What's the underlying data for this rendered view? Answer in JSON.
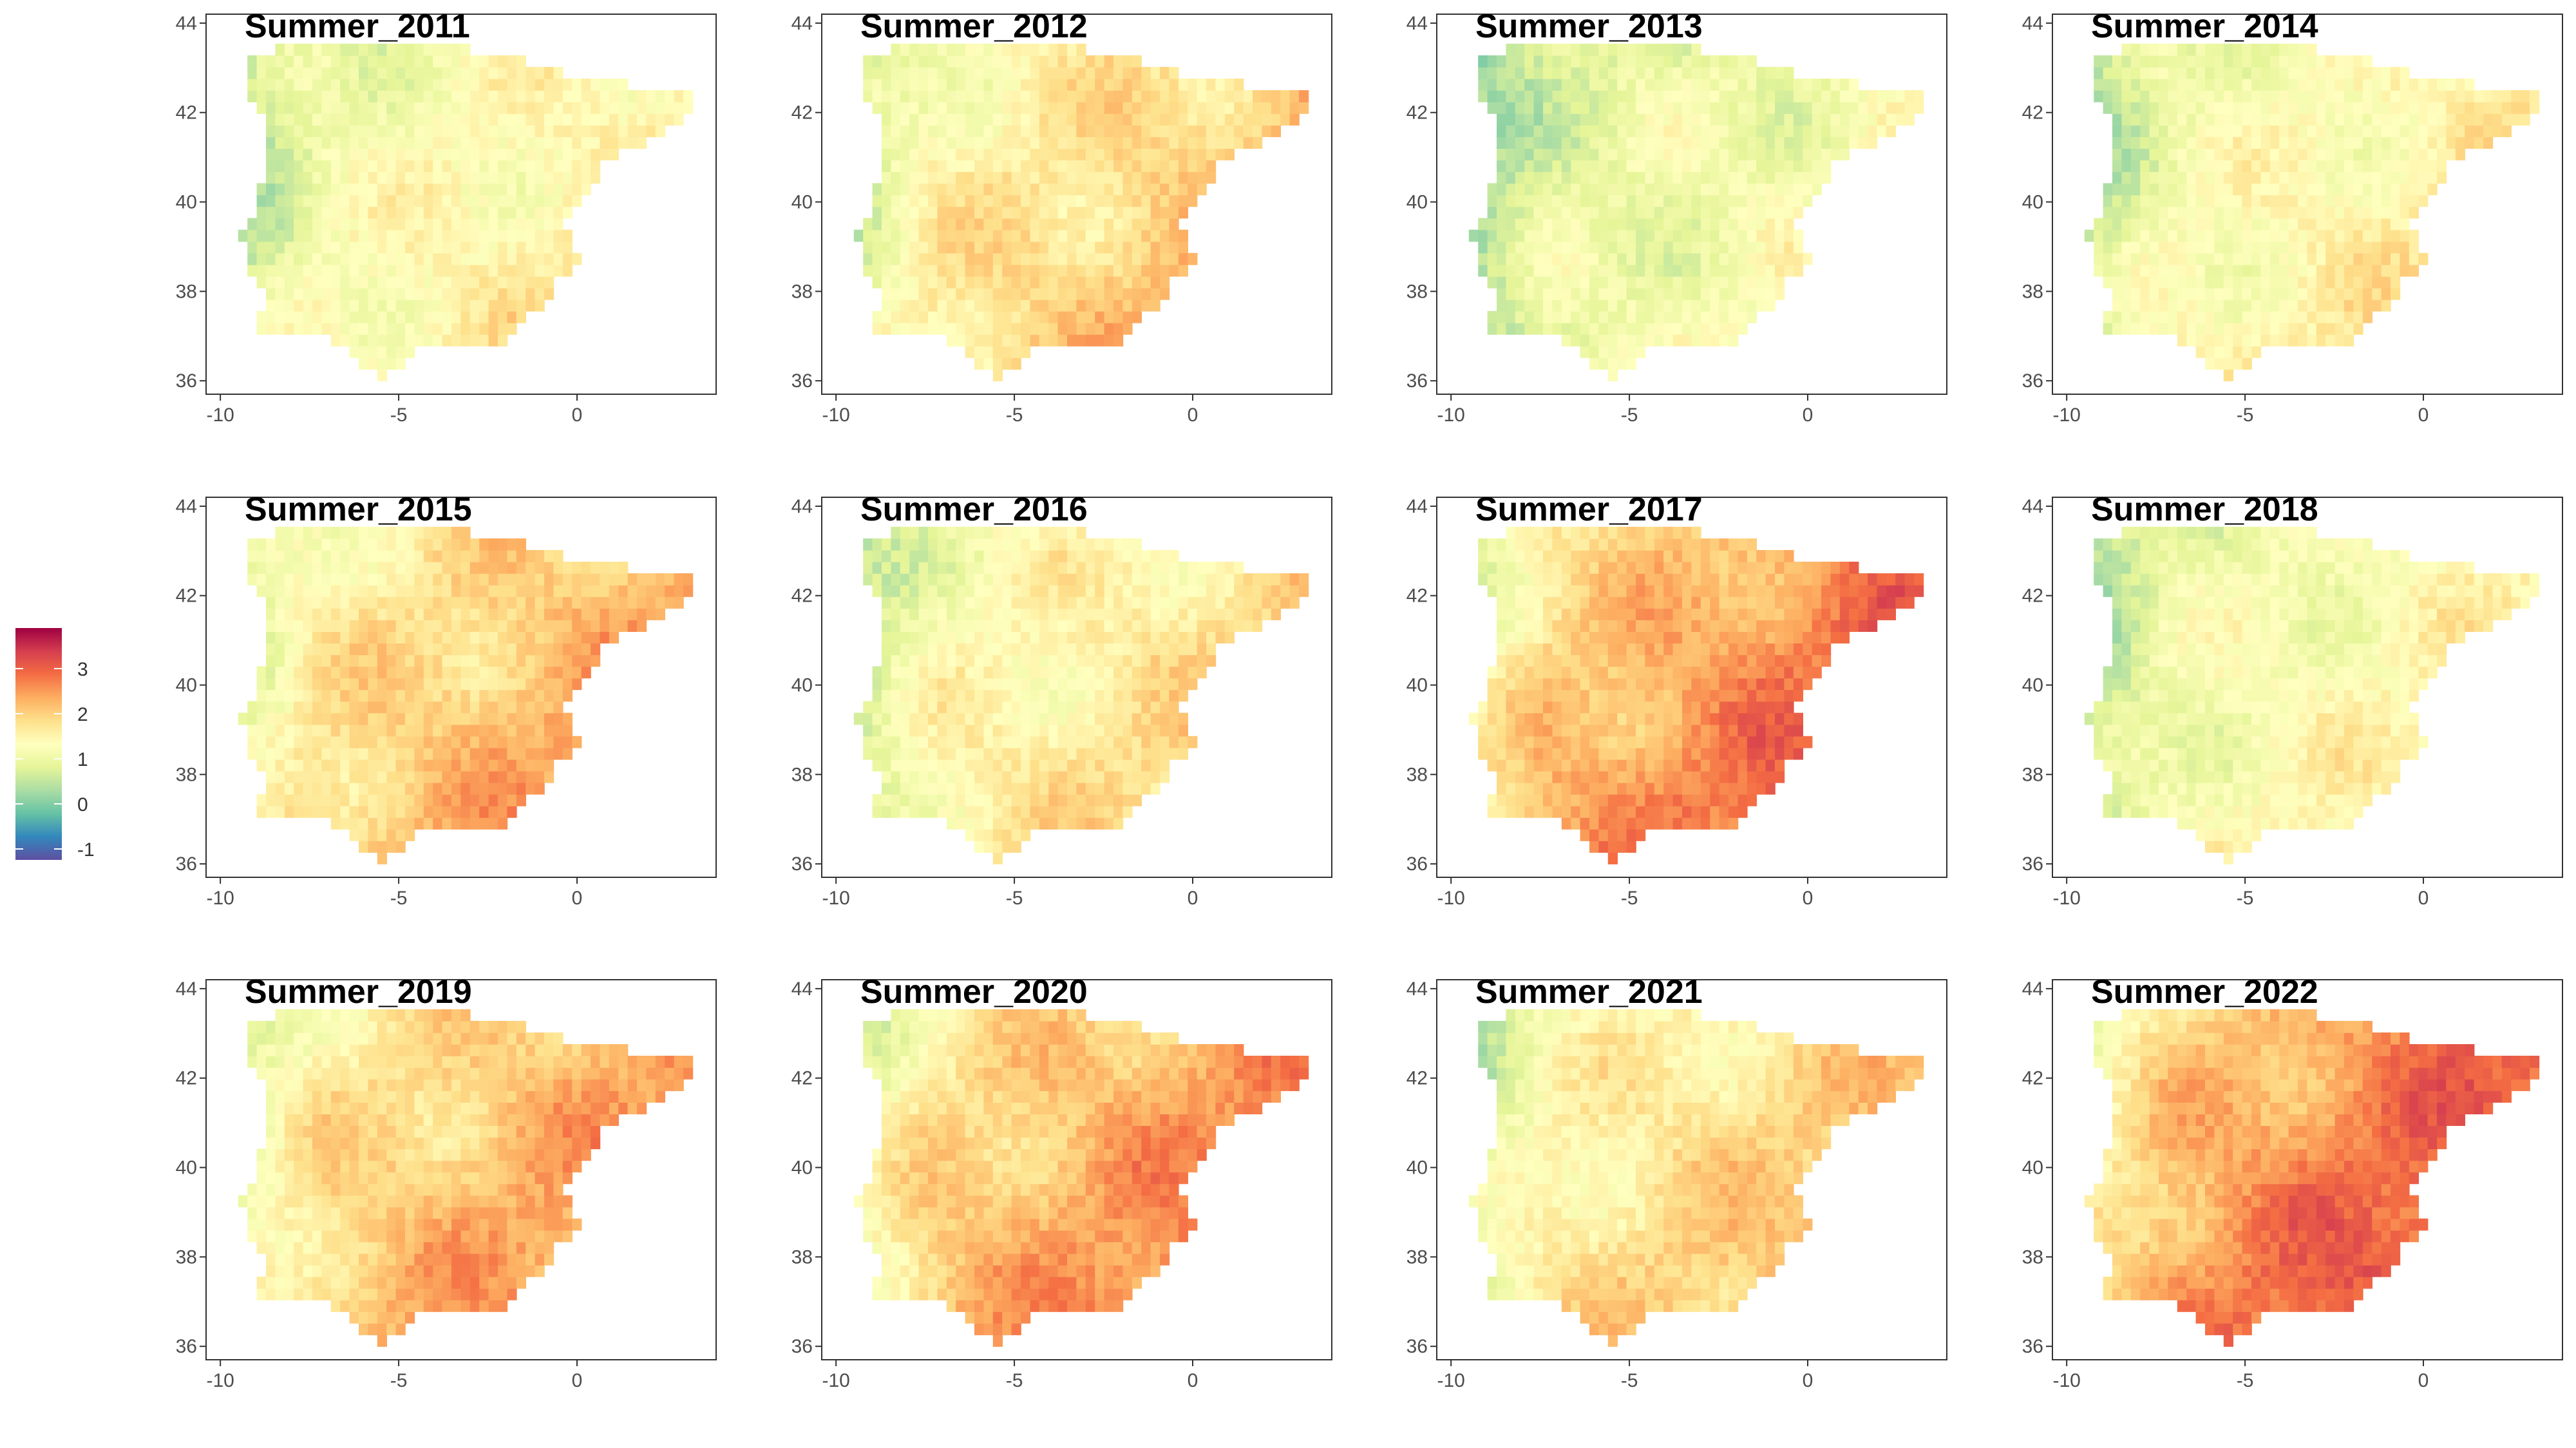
{
  "legend": {
    "ticks": [
      "3",
      "2",
      "1",
      "0",
      "-1"
    ],
    "colors": [
      "#5E4FA2",
      "#3288BD",
      "#66C2A5",
      "#ABDDA4",
      "#E6F598",
      "#FFFFBF",
      "#FEE08B",
      "#FDAE61",
      "#F46D43",
      "#D53E4F",
      "#9E0142"
    ]
  },
  "axes": {
    "x_ticks": [
      "-10",
      "-5",
      "0"
    ],
    "y_ticks": [
      "44",
      "42",
      "40",
      "38",
      "36"
    ]
  },
  "panels": [
    {
      "title": "Summer_2011",
      "intensity": 1.15
    },
    {
      "title": "Summer_2012",
      "intensity": 1.55
    },
    {
      "title": "Summer_2013",
      "intensity": 0.85
    },
    {
      "title": "Summer_2014",
      "intensity": 1.15
    },
    {
      "title": "Summer_2015",
      "intensity": 1.75
    },
    {
      "title": "Summer_2016",
      "intensity": 1.35
    },
    {
      "title": "Summer_2017",
      "intensity": 2.15
    },
    {
      "title": "Summer_2018",
      "intensity": 1.05
    },
    {
      "title": "Summer_2019",
      "intensity": 1.85
    },
    {
      "title": "Summer_2020",
      "intensity": 2.0
    },
    {
      "title": "Summer_2021",
      "intensity": 1.55
    },
    {
      "title": "Summer_2022",
      "intensity": 2.35
    }
  ]
}
